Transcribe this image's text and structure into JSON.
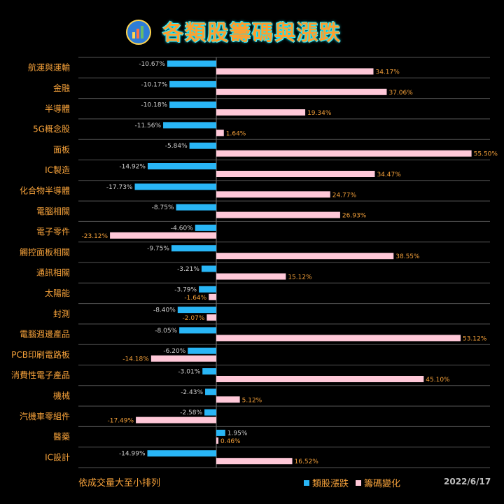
{
  "header": {
    "title": "各類股籌碼與漲跌"
  },
  "colors": {
    "price": "#29b6f6",
    "chip": "#ffc8d8",
    "label": "#f5a13a",
    "grid": "#555555",
    "priceText": "#d0d0d0",
    "chipText": "#f5a13a"
  },
  "footer": {
    "note": "依成交量大至小排列",
    "date": "2022/6/17"
  },
  "chart_data": {
    "type": "bar",
    "orientation": "horizontal",
    "categories": [
      "航運與運輸",
      "金融",
      "半導體",
      "5G概念股",
      "面板",
      "IC製造",
      "化合物半導體",
      "電腦相關",
      "電子零件",
      "觸控面板相關",
      "通訊相關",
      "太陽能",
      "封測",
      "電腦週邊產品",
      "PCB印刷電路板",
      "消費性電子產品",
      "機械",
      "汽機車零組件",
      "醫藥",
      "IC設計"
    ],
    "series": [
      {
        "name": "類股漲跌",
        "values": [
          -10.67,
          -10.17,
          -10.18,
          -11.56,
          -5.84,
          -14.92,
          -17.73,
          -8.75,
          -4.6,
          -9.75,
          -3.21,
          -3.79,
          -8.4,
          -8.05,
          -6.2,
          -3.01,
          -2.43,
          -2.58,
          1.95,
          -14.99
        ],
        "labels": [
          "-10.67%",
          "-10.17%",
          "-10.18%",
          "-11.56%",
          "-5.84%",
          "-14.92%",
          "-17.73%",
          "-8.75%",
          "-4.60%",
          "-9.75%",
          "-3.21%",
          "-3.79%",
          "-8.40%",
          "-8.05%",
          "-6.20%",
          "-3.01%",
          "-2.43%",
          "-2.58%",
          "1.95%",
          "-14.99%"
        ]
      },
      {
        "name": "籌碼變化",
        "values": [
          34.17,
          37.06,
          19.34,
          1.64,
          55.5,
          34.47,
          24.77,
          26.93,
          -23.12,
          38.55,
          15.12,
          -1.64,
          -2.07,
          53.12,
          -14.18,
          45.1,
          5.12,
          -17.49,
          0.46,
          16.52
        ],
        "labels": [
          "34.17%",
          "37.06%",
          "19.34%",
          "1.64%",
          "55.50%",
          "34.47%",
          "24.77%",
          "26.93%",
          "-23.12%",
          "38.55%",
          "15.12%",
          "-1.64%",
          "-2.07%",
          "53.12%",
          "-14.18%",
          "45.10%",
          "5.12%",
          "-17.49%",
          "0.46%",
          "16.52%"
        ]
      }
    ]
  }
}
